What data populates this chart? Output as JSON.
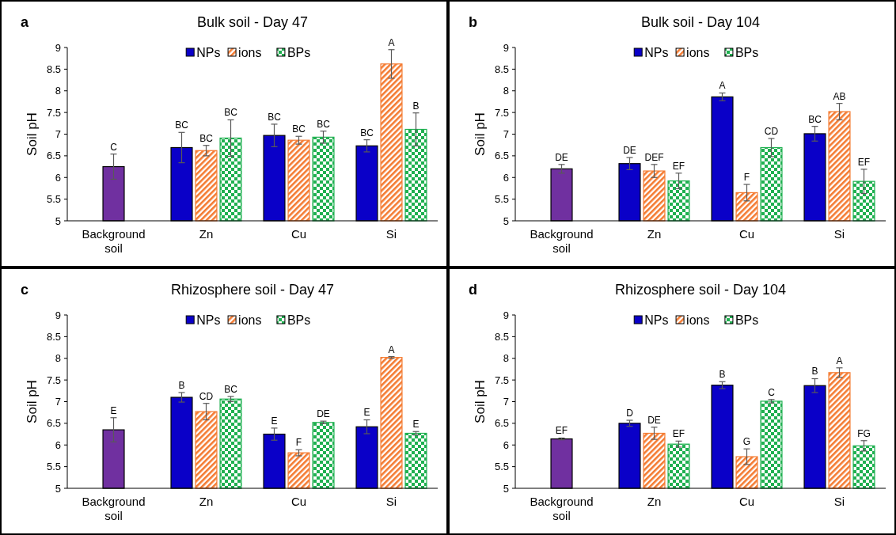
{
  "chart_data": [
    {
      "type": "bar",
      "title": "Bulk soil - Day 47",
      "ylabel": "Soil pH",
      "annotations": [
        "a"
      ],
      "categories": [
        "Background soil",
        "Zn",
        "Cu",
        "Si"
      ],
      "ylim": [
        5,
        9
      ],
      "yticks": [
        5,
        5.5,
        6,
        6.5,
        7,
        7.5,
        8,
        8.5,
        9
      ],
      "legend": "top",
      "series": [
        {
          "color": "#7030a0",
          "values": [
            6.25,
            null,
            null,
            null
          ],
          "errors": [
            0.29,
            null,
            null,
            null
          ],
          "value_labels": [
            "C",
            null,
            null,
            null
          ]
        },
        {
          "name": "NPs",
          "color": "#0a00c8",
          "values": [
            null,
            6.69,
            6.97,
            6.73
          ],
          "errors": [
            null,
            0.35,
            0.26,
            0.14
          ],
          "value_labels": [
            null,
            "BC",
            "BC",
            "BC"
          ]
        },
        {
          "name": "ions",
          "color": "#f47a30",
          "values": [
            null,
            6.62,
            6.86,
            8.62
          ],
          "errors": [
            null,
            0.12,
            0.09,
            0.33
          ],
          "value_labels": [
            null,
            "BC",
            "BC",
            "A"
          ]
        },
        {
          "name": "BPs",
          "color": "#1fb050",
          "values": [
            null,
            6.91,
            6.93,
            7.11
          ],
          "errors": [
            null,
            0.42,
            0.14,
            0.38
          ],
          "value_labels": [
            null,
            "BC",
            "BC",
            "B"
          ]
        }
      ]
    },
    {
      "type": "bar",
      "title": "Bulk soil - Day 104",
      "ylabel": "Soil pH",
      "annotations": [
        "b"
      ],
      "categories": [
        "Background soil",
        "Zn",
        "Cu",
        "Si"
      ],
      "ylim": [
        5,
        9
      ],
      "yticks": [
        5,
        5.5,
        6,
        6.5,
        7,
        7.5,
        8,
        8.5,
        9
      ],
      "legend": "top",
      "series": [
        {
          "color": "#7030a0",
          "values": [
            6.2,
            null,
            null,
            null
          ],
          "errors": [
            0.1,
            null,
            null,
            null
          ],
          "value_labels": [
            "DE",
            null,
            null,
            null
          ]
        },
        {
          "name": "NPs",
          "color": "#0a00c8",
          "values": [
            null,
            6.32,
            7.86,
            7.01
          ],
          "errors": [
            null,
            0.14,
            0.09,
            0.17
          ],
          "value_labels": [
            null,
            "DE",
            "A",
            "BC"
          ]
        },
        {
          "name": "ions",
          "color": "#f47a30",
          "values": [
            null,
            6.15,
            5.65,
            7.52
          ],
          "errors": [
            null,
            0.15,
            0.19,
            0.19
          ],
          "value_labels": [
            null,
            "DEF",
            "F",
            "AB"
          ]
        },
        {
          "name": "BPs",
          "color": "#1fb050",
          "values": [
            null,
            5.92,
            6.69,
            5.91
          ],
          "errors": [
            null,
            0.18,
            0.21,
            0.28
          ],
          "value_labels": [
            null,
            "EF",
            "CD",
            "EF"
          ]
        }
      ]
    },
    {
      "type": "bar",
      "title": "Rhizosphere soil - Day 47",
      "ylabel": "Soil pH",
      "annotations": [
        "c"
      ],
      "categories": [
        "Background soil",
        "Zn",
        "Cu",
        "Si"
      ],
      "ylim": [
        5,
        9
      ],
      "yticks": [
        5,
        5.5,
        6,
        6.5,
        7,
        7.5,
        8,
        8.5,
        9
      ],
      "legend": "top",
      "series": [
        {
          "color": "#7030a0",
          "values": [
            6.35,
            null,
            null,
            null
          ],
          "errors": [
            0.28,
            null,
            null,
            null
          ],
          "value_labels": [
            "E",
            null,
            null,
            null
          ]
        },
        {
          "name": "NPs",
          "color": "#0a00c8",
          "values": [
            null,
            7.1,
            6.25,
            6.42
          ],
          "errors": [
            null,
            0.11,
            0.14,
            0.16
          ],
          "value_labels": [
            null,
            "B",
            "E",
            "E"
          ]
        },
        {
          "name": "ions",
          "color": "#f47a30",
          "values": [
            null,
            6.77,
            5.82,
            8.02
          ],
          "errors": [
            null,
            0.19,
            0.07,
            0.02
          ],
          "value_labels": [
            null,
            "CD",
            "F",
            "A"
          ]
        },
        {
          "name": "BPs",
          "color": "#1fb050",
          "values": [
            null,
            7.06,
            6.52,
            6.27
          ],
          "errors": [
            null,
            0.06,
            0.03,
            0.04
          ],
          "value_labels": [
            null,
            "BC",
            "DE",
            "E"
          ]
        }
      ]
    },
    {
      "type": "bar",
      "title": "Rhizosphere soil - Day 104",
      "ylabel": "Soil pH",
      "annotations": [
        "d"
      ],
      "categories": [
        "Background soil",
        "Zn",
        "Cu",
        "Si"
      ],
      "ylim": [
        5,
        9
      ],
      "yticks": [
        5,
        5.5,
        6,
        6.5,
        7,
        7.5,
        8,
        8.5,
        9
      ],
      "legend": "top",
      "series": [
        {
          "color": "#7030a0",
          "values": [
            6.14,
            null,
            null,
            null
          ],
          "errors": [
            0.02,
            null,
            null,
            null
          ],
          "value_labels": [
            "EF",
            null,
            null,
            null
          ]
        },
        {
          "name": "NPs",
          "color": "#0a00c8",
          "values": [
            null,
            6.5,
            7.38,
            7.37
          ],
          "errors": [
            null,
            0.07,
            0.08,
            0.16
          ],
          "value_labels": [
            null,
            "D",
            "B",
            "B"
          ]
        },
        {
          "name": "ions",
          "color": "#f47a30",
          "values": [
            null,
            6.27,
            5.73,
            7.67
          ],
          "errors": [
            null,
            0.14,
            0.18,
            0.11
          ],
          "value_labels": [
            null,
            "DE",
            "G",
            "A"
          ]
        },
        {
          "name": "BPs",
          "color": "#1fb050",
          "values": [
            null,
            6.02,
            7.01,
            5.98
          ],
          "errors": [
            null,
            0.07,
            0.04,
            0.12
          ],
          "value_labels": [
            null,
            "EF",
            "C",
            "FG"
          ]
        }
      ]
    }
  ]
}
